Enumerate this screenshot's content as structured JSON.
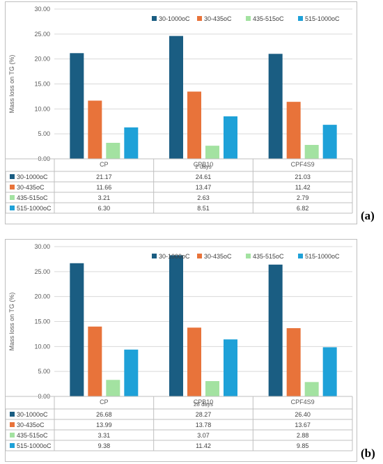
{
  "chart_data": [
    {
      "type": "bar",
      "panel_label": "(a)",
      "ylabel": "Mass loss on TG (%)",
      "ylim": [
        0,
        30
      ],
      "yticks": [
        "0.00",
        "5.00",
        "10.00",
        "15.00",
        "20.00",
        "25.00",
        "30.00"
      ],
      "categories": [
        "CP",
        "CPB10",
        "CPF4S9"
      ],
      "xlabel": "2 days",
      "legend_position": "top-right",
      "series": [
        {
          "name": "30-1000oC",
          "color": "#1a5d82",
          "values": [
            21.17,
            24.61,
            21.03
          ],
          "labels": [
            "21.17",
            "24.61",
            "21.03"
          ]
        },
        {
          "name": "30-435oC",
          "color": "#e8733a",
          "values": [
            11.66,
            13.47,
            11.42
          ],
          "labels": [
            "11.66",
            "13.47",
            "11.42"
          ]
        },
        {
          "name": "435-515oC",
          "color": "#a3e2a1",
          "values": [
            3.21,
            2.63,
            2.79
          ],
          "labels": [
            "3.21",
            "2.63",
            "2.79"
          ]
        },
        {
          "name": "515-1000oC",
          "color": "#1ea1d8",
          "values": [
            6.3,
            8.51,
            6.82
          ],
          "labels": [
            "6.30",
            "8.51",
            "6.82"
          ]
        }
      ]
    },
    {
      "type": "bar",
      "panel_label": "(b)",
      "ylabel": "Mass loss on TG (%)",
      "ylim": [
        0,
        30
      ],
      "yticks": [
        "0.00",
        "5.00",
        "10.00",
        "15.00",
        "20.00",
        "25.00",
        "30.00"
      ],
      "categories": [
        "CP",
        "CPB10",
        "CPF4S9"
      ],
      "xlabel": "28 days",
      "legend_position": "top-right",
      "series": [
        {
          "name": "30-1000oC",
          "color": "#1a5d82",
          "values": [
            26.68,
            28.27,
            26.4
          ],
          "labels": [
            "26.68",
            "28.27",
            "26.40"
          ]
        },
        {
          "name": "30-435oC",
          "color": "#e8733a",
          "values": [
            13.99,
            13.78,
            13.67
          ],
          "labels": [
            "13.99",
            "13.78",
            "13.67"
          ]
        },
        {
          "name": "435-515oC",
          "color": "#a3e2a1",
          "values": [
            3.31,
            3.07,
            2.88
          ],
          "labels": [
            "3.31",
            "3.07",
            "2.88"
          ]
        },
        {
          "name": "515-1000oC",
          "color": "#1ea1d8",
          "values": [
            9.38,
            11.42,
            9.85
          ],
          "labels": [
            "9.38",
            "11.42",
            "9.85"
          ]
        }
      ]
    }
  ]
}
